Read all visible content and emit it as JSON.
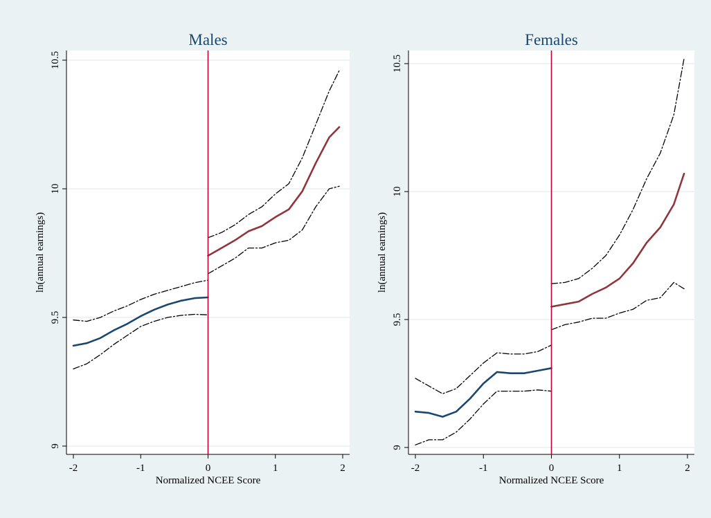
{
  "chart_data": [
    {
      "type": "line",
      "title": "Males",
      "xlabel": "Normalized NCEE Score",
      "ylabel": "ln(annual earnings)",
      "xlim": [
        -2.1,
        2.1
      ],
      "ylim": [
        9,
        10.5
      ],
      "xticks": [
        "-2",
        "-1",
        "0",
        "1",
        "2"
      ],
      "yticks": [
        "9",
        "9.5",
        "10",
        "10.5"
      ],
      "cutoff_x": 0,
      "grid": true,
      "series": [
        {
          "role": "upper-ci-left",
          "style": "dashdot",
          "color": "#000000",
          "x": [
            -2,
            -1.8,
            -1.6,
            -1.4,
            -1.2,
            -1,
            -0.8,
            -0.6,
            -0.4,
            -0.2,
            0
          ],
          "y": [
            9.49,
            9.485,
            9.5,
            9.525,
            9.545,
            9.57,
            9.59,
            9.605,
            9.62,
            9.635,
            9.645
          ]
        },
        {
          "role": "fit-left",
          "style": "solid",
          "color": "#1a476f",
          "x": [
            -2,
            -1.8,
            -1.6,
            -1.4,
            -1.2,
            -1,
            -0.8,
            -0.6,
            -0.4,
            -0.2,
            0
          ],
          "y": [
            9.39,
            9.4,
            9.42,
            9.45,
            9.475,
            9.505,
            9.53,
            9.55,
            9.565,
            9.575,
            9.578
          ]
        },
        {
          "role": "lower-ci-left",
          "style": "dashdot",
          "color": "#000000",
          "x": [
            -2,
            -1.8,
            -1.6,
            -1.4,
            -1.2,
            -1,
            -0.8,
            -0.6,
            -0.4,
            -0.2,
            0
          ],
          "y": [
            9.3,
            9.32,
            9.355,
            9.395,
            9.43,
            9.465,
            9.485,
            9.5,
            9.508,
            9.512,
            9.51
          ]
        },
        {
          "role": "upper-ci-right",
          "style": "dashdot",
          "color": "#000000",
          "x": [
            0,
            0.2,
            0.4,
            0.6,
            0.8,
            1,
            1.2,
            1.4,
            1.6,
            1.8,
            1.95
          ],
          "y": [
            9.81,
            9.83,
            9.86,
            9.9,
            9.93,
            9.98,
            10.02,
            10.12,
            10.25,
            10.38,
            10.46
          ]
        },
        {
          "role": "fit-right",
          "style": "solid",
          "color": "#90353b",
          "x": [
            0,
            0.2,
            0.4,
            0.6,
            0.8,
            1,
            1.2,
            1.4,
            1.6,
            1.8,
            1.95
          ],
          "y": [
            9.74,
            9.77,
            9.8,
            9.835,
            9.855,
            9.89,
            9.92,
            9.99,
            10.1,
            10.2,
            10.24
          ]
        },
        {
          "role": "lower-ci-right",
          "style": "dashdot",
          "color": "#000000",
          "x": [
            0,
            0.2,
            0.4,
            0.6,
            0.8,
            1,
            1.2,
            1.4,
            1.6,
            1.8,
            1.95
          ],
          "y": [
            9.67,
            9.7,
            9.73,
            9.77,
            9.77,
            9.79,
            9.8,
            9.84,
            9.93,
            10,
            10.01
          ]
        }
      ]
    },
    {
      "type": "line",
      "title": "Females",
      "xlabel": "Normalized NCEE Score",
      "ylabel": "ln(annual earnings)",
      "xlim": [
        -2.1,
        2.1
      ],
      "ylim": [
        9,
        10.5
      ],
      "xticks": [
        "-2",
        "-1",
        "0",
        "1",
        "2"
      ],
      "yticks": [
        "9",
        "9.5",
        "10",
        "10.5"
      ],
      "cutoff_x": 0,
      "grid": true,
      "series": [
        {
          "role": "upper-ci-left",
          "style": "dashdot",
          "color": "#000000",
          "x": [
            -2,
            -1.8,
            -1.6,
            -1.4,
            -1.2,
            -1,
            -0.8,
            -0.6,
            -0.4,
            -0.2,
            0
          ],
          "y": [
            9.27,
            9.24,
            9.21,
            9.23,
            9.28,
            9.33,
            9.37,
            9.365,
            9.365,
            9.375,
            9.4
          ]
        },
        {
          "role": "fit-left",
          "style": "solid",
          "color": "#1a476f",
          "x": [
            -2,
            -1.8,
            -1.6,
            -1.4,
            -1.2,
            -1,
            -0.8,
            -0.6,
            -0.4,
            -0.2,
            0
          ],
          "y": [
            9.14,
            9.135,
            9.12,
            9.14,
            9.19,
            9.25,
            9.295,
            9.29,
            9.29,
            9.3,
            9.31
          ]
        },
        {
          "role": "lower-ci-left",
          "style": "dashdot",
          "color": "#000000",
          "x": [
            -2,
            -1.8,
            -1.6,
            -1.4,
            -1.2,
            -1,
            -0.8,
            -0.6,
            -0.4,
            -0.2,
            0
          ],
          "y": [
            9.01,
            9.03,
            9.03,
            9.06,
            9.11,
            9.17,
            9.22,
            9.22,
            9.22,
            9.225,
            9.22
          ]
        },
        {
          "role": "upper-ci-right",
          "style": "dashdot",
          "color": "#000000",
          "x": [
            0,
            0.2,
            0.4,
            0.6,
            0.8,
            1,
            1.2,
            1.4,
            1.6,
            1.8,
            1.95
          ],
          "y": [
            9.64,
            9.645,
            9.66,
            9.7,
            9.75,
            9.83,
            9.93,
            10.05,
            10.15,
            10.3,
            10.52
          ]
        },
        {
          "role": "fit-right",
          "style": "solid",
          "color": "#90353b",
          "x": [
            0,
            0.2,
            0.4,
            0.6,
            0.8,
            1,
            1.2,
            1.4,
            1.6,
            1.8,
            1.95
          ],
          "y": [
            9.55,
            9.56,
            9.57,
            9.6,
            9.625,
            9.66,
            9.72,
            9.8,
            9.86,
            9.95,
            10.07
          ]
        },
        {
          "role": "lower-ci-right",
          "style": "dashdot",
          "color": "#000000",
          "x": [
            0,
            0.2,
            0.4,
            0.6,
            0.8,
            1,
            1.2,
            1.4,
            1.6,
            1.8,
            1.95
          ],
          "y": [
            9.46,
            9.48,
            9.49,
            9.505,
            9.505,
            9.525,
            9.54,
            9.575,
            9.585,
            9.645,
            9.62
          ]
        }
      ]
    }
  ],
  "colors": {
    "background": "#eaf2f3",
    "plot_area": "#ffffff",
    "grid": "#e5ecee",
    "cutoff_line": "#c00030",
    "title": "#1a476f"
  }
}
